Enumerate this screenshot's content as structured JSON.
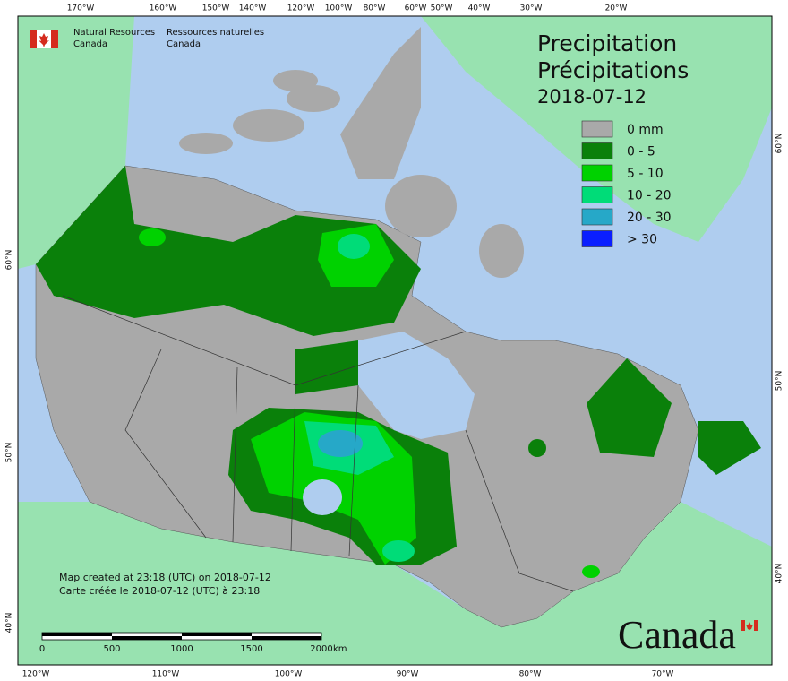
{
  "header": {
    "title": "Precipitation",
    "title_fr": "Précipitations",
    "date": "2018-07-12"
  },
  "agency": {
    "en": [
      "Natural Resources",
      "Canada"
    ],
    "fr": [
      "Ressources naturelles",
      "Canada"
    ]
  },
  "legend": [
    {
      "label": "0 mm",
      "color": "#a9a9a9"
    },
    {
      "label": "0 - 5",
      "color": "#0a800a"
    },
    {
      "label": "5 - 10",
      "color": "#00d200"
    },
    {
      "label": "10 - 20",
      "color": "#00dc78"
    },
    {
      "label": "20 - 30",
      "color": "#26a8c8"
    },
    {
      "label": "> 30",
      "color": "#0a1eff"
    }
  ],
  "graticule": {
    "top": [
      "170°W",
      "160°W",
      "150°W",
      "140°W",
      "120°W",
      "100°W",
      "80°W",
      "60°W",
      "50°W",
      "40°W",
      "30°W",
      "20°W"
    ],
    "bottom": [
      "120°W",
      "110°W",
      "100°W",
      "90°W",
      "80°W",
      "70°W"
    ],
    "left": [
      "60°N",
      "50°N",
      "40°N"
    ],
    "right": [
      "60°N",
      "50°N",
      "40°N"
    ]
  },
  "notes": [
    "Map created at 23:18 (UTC) on 2018-07-12",
    "Carte créée le 2018-07-12 (UTC) à 23:18"
  ],
  "scale_bar": {
    "labels": [
      "0",
      "500",
      "1000",
      "1500",
      "2000"
    ],
    "unit": "km"
  },
  "wordmark": "Canada"
}
